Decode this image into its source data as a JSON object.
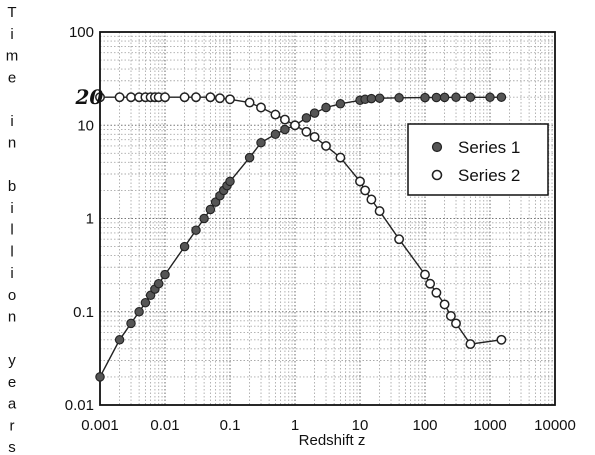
{
  "chart_data": {
    "type": "scatter",
    "xlabel": "Redshift  z",
    "ylabel": "Time in billion years",
    "xscale": "log",
    "yscale": "log",
    "xlim": [
      0.001,
      10000
    ],
    "ylim": [
      0.01,
      100
    ],
    "grid": true,
    "legend_position": "right",
    "x_tick_labels": [
      "0.001",
      "0.01",
      "0.1",
      "1",
      "10",
      "100",
      "1000",
      "10000"
    ],
    "y_tick_labels": [
      "0.01",
      "0.1",
      "1",
      "10",
      "100"
    ],
    "annotations": [
      {
        "text": "20",
        "x": 0.0015,
        "y": 20
      }
    ],
    "series": [
      {
        "name": "Series 1",
        "color": "#555555",
        "marker": "filled-circle",
        "x": [
          0.001,
          0.002,
          0.003,
          0.004,
          0.005,
          0.006,
          0.007,
          0.008,
          0.01,
          0.02,
          0.03,
          0.04,
          0.05,
          0.06,
          0.07,
          0.08,
          0.09,
          0.1,
          0.2,
          0.3,
          0.5,
          0.7,
          1,
          1.5,
          2,
          3,
          5,
          10,
          12,
          15,
          20,
          40,
          100,
          150,
          200,
          300,
          500,
          1000,
          1500
        ],
        "y": [
          0.02,
          0.05,
          0.075,
          0.1,
          0.125,
          0.15,
          0.175,
          0.2,
          0.25,
          0.5,
          0.75,
          1.0,
          1.25,
          1.5,
          1.75,
          2.0,
          2.25,
          2.5,
          4.5,
          6.5,
          8.0,
          9.0,
          10.0,
          12.0,
          13.5,
          15.5,
          17.0,
          18.5,
          19.0,
          19.3,
          19.5,
          19.7,
          19.8,
          19.85,
          19.9,
          19.92,
          19.94,
          19.96,
          19.97
        ]
      },
      {
        "name": "Series 2",
        "color": "#ffffff",
        "marker": "open-circle",
        "x": [
          0.001,
          0.002,
          0.003,
          0.004,
          0.005,
          0.006,
          0.007,
          0.008,
          0.01,
          0.02,
          0.03,
          0.05,
          0.07,
          0.1,
          0.2,
          0.3,
          0.5,
          0.7,
          1,
          1.5,
          2,
          3,
          5,
          10,
          12,
          15,
          20,
          40,
          100,
          120,
          150,
          200,
          250,
          300,
          500,
          1500
        ],
        "y": [
          20,
          20,
          20,
          20,
          20,
          20,
          20,
          20,
          20,
          20,
          20,
          20,
          19.5,
          19,
          17.5,
          15.5,
          13,
          11.5,
          10,
          8.5,
          7.5,
          6,
          4.5,
          2.5,
          2.0,
          1.6,
          1.2,
          0.6,
          0.25,
          0.2,
          0.16,
          0.12,
          0.09,
          0.075,
          0.045,
          0.05
        ]
      }
    ]
  }
}
